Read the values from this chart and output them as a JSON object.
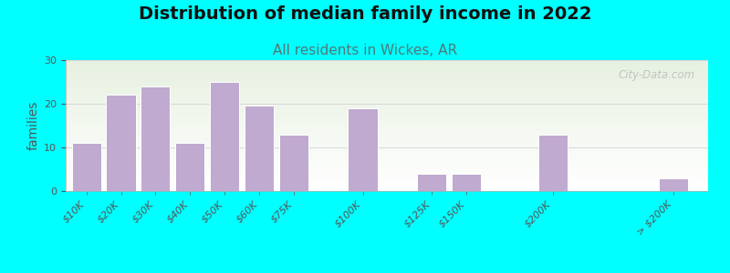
{
  "title": "Distribution of median family income in 2022",
  "subtitle": "All residents in Wickes, AR",
  "ylabel": "families",
  "background_color": "#00FFFF",
  "bar_color": "#c0aad0",
  "bar_edge_color": "#ffffff",
  "categories": [
    "$10K",
    "$20K",
    "$30K",
    "$40K",
    "$50K",
    "$60K",
    "$75K",
    "$100K",
    "$125K",
    "$150K",
    "$200K",
    "> $200K"
  ],
  "values": [
    11,
    22,
    24,
    11,
    25,
    19.5,
    13,
    19,
    4,
    4,
    13,
    3
  ],
  "x_positions": [
    0,
    1,
    2,
    3,
    4,
    5,
    6,
    8,
    10,
    11,
    13.5,
    17
  ],
  "bar_width": 0.85,
  "xlim": [
    -0.6,
    18.0
  ],
  "ylim": [
    0,
    30
  ],
  "yticks": [
    0,
    10,
    20,
    30
  ],
  "title_fontsize": 14,
  "subtitle_fontsize": 11,
  "ylabel_fontsize": 10,
  "tick_fontsize": 8,
  "watermark_text": "City-Data.com",
  "subtitle_color": "#507878",
  "title_color": "#111111"
}
